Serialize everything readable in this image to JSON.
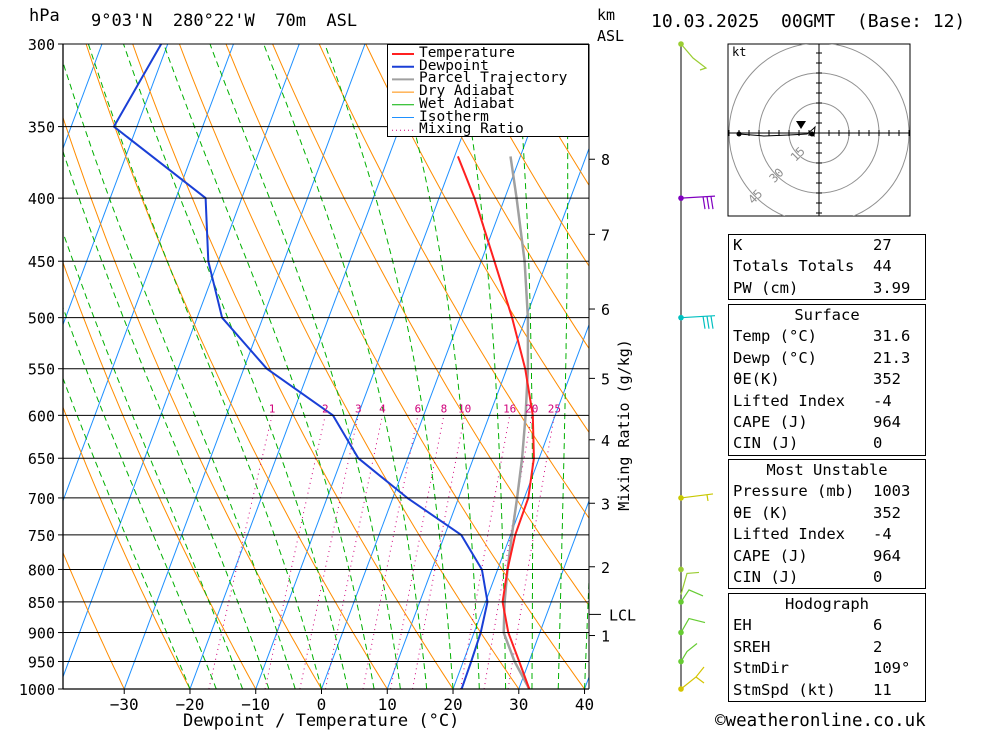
{
  "header": {
    "pressure_unit": "hPa",
    "location": "9°03'N  280°22'W  70m  ASL",
    "height_unit_top": "km",
    "height_unit_bottom": "ASL",
    "datetime": "10.03.2025  00GMT  (Base: 12)"
  },
  "footer": {
    "credit": "©weatheronline.co.uk"
  },
  "chart_data": {
    "type": "line",
    "title": "9°03'N 280°22'W 70m ASL",
    "xlabel": "Dewpoint / Temperature (°C)",
    "ylabel": "hPa",
    "secondary_ylabel": "Mixing Ratio (g/kg)",
    "x_ticks": [
      -30,
      -20,
      -10,
      0,
      10,
      20,
      30,
      40
    ],
    "pressure_levels": [
      300,
      350,
      400,
      450,
      500,
      550,
      600,
      650,
      700,
      750,
      800,
      850,
      900,
      950,
      1000
    ],
    "km_ticks": [
      {
        "label": "1",
        "p": 905
      },
      {
        "label": "2",
        "p": 796
      },
      {
        "label": "3",
        "p": 707
      },
      {
        "label": "4",
        "p": 628
      },
      {
        "label": "5",
        "p": 560
      },
      {
        "label": "6",
        "p": 492
      },
      {
        "label": "7",
        "p": 428
      },
      {
        "label": "8",
        "p": 372
      }
    ],
    "lcl": {
      "label": "LCL",
      "p": 870
    },
    "mixing_ratio_labels": [
      "1",
      "2",
      "3",
      "4",
      "6",
      "8",
      "10",
      "16",
      "20",
      "25"
    ],
    "legend": [
      "Temperature",
      "Dewpoint",
      "Parcel Trajectory",
      "Dry Adiabat",
      "Wet Adiabat",
      "Isotherm",
      "Mixing Ratio"
    ],
    "colors": {
      "temperature": "#ff2020",
      "dewpoint": "#1a3fd6",
      "parcel": "#a0a0a0",
      "dry_adiabat": "#ff8c00",
      "wet_adiabat": "#00b000",
      "isotherm": "#1e90ff",
      "mixing_ratio": "#d0007a"
    },
    "series": [
      {
        "name": "Temperature",
        "points": [
          [
            1000,
            31.6
          ],
          [
            950,
            28.5
          ],
          [
            900,
            25.2
          ],
          [
            850,
            22.6
          ],
          [
            800,
            21.5
          ],
          [
            750,
            20.7
          ],
          [
            700,
            20.6
          ],
          [
            650,
            19.2
          ],
          [
            600,
            16.6
          ],
          [
            550,
            12.8
          ],
          [
            500,
            7.9
          ],
          [
            450,
            2.0
          ],
          [
            400,
            -4.6
          ],
          [
            370,
            -9.5
          ]
        ]
      },
      {
        "name": "Dewpoint",
        "points": [
          [
            1000,
            21.3
          ],
          [
            950,
            21.2
          ],
          [
            900,
            21.0
          ],
          [
            850,
            20.3
          ],
          [
            800,
            17.6
          ],
          [
            750,
            12.5
          ],
          [
            700,
            2.2
          ],
          [
            650,
            -7.5
          ],
          [
            600,
            -13.8
          ],
          [
            550,
            -26.5
          ],
          [
            500,
            -36.2
          ],
          [
            450,
            -41.5
          ],
          [
            400,
            -45.5
          ],
          [
            350,
            -63.5
          ],
          [
            300,
            -61.0
          ]
        ]
      },
      {
        "name": "Parcel Trajectory",
        "points": [
          [
            1000,
            31.6
          ],
          [
            950,
            27.8
          ],
          [
            900,
            24.5
          ],
          [
            850,
            22.9
          ],
          [
            800,
            21.5
          ],
          [
            750,
            20.2
          ],
          [
            700,
            18.9
          ],
          [
            650,
            17.4
          ],
          [
            600,
            15.5
          ],
          [
            550,
            13.2
          ],
          [
            500,
            10.3
          ],
          [
            450,
            6.6
          ],
          [
            400,
            1.8
          ],
          [
            370,
            -1.5
          ]
        ]
      }
    ],
    "wind_barbs_pressure": [
      300,
      400,
      500,
      700,
      800,
      850,
      900,
      950,
      1000
    ]
  },
  "hodograph": {
    "unit": "kt",
    "rings": [
      "15",
      "30",
      "45"
    ]
  },
  "indices": {
    "rows": [
      {
        "label": "K",
        "value": "27"
      },
      {
        "label": "Totals Totals",
        "value": "44"
      },
      {
        "label": "PW (cm)",
        "value": "3.99"
      }
    ]
  },
  "surface": {
    "title": "Surface",
    "rows": [
      {
        "label": "Temp (°C)",
        "value": "31.6"
      },
      {
        "label": "Dewp (°C)",
        "value": "21.3"
      },
      {
        "label": "θE(K)",
        "value": "352"
      },
      {
        "label": "Lifted Index",
        "value": "-4"
      },
      {
        "label": "CAPE (J)",
        "value": "964"
      },
      {
        "label": "CIN (J)",
        "value": "0"
      }
    ]
  },
  "most_unstable": {
    "title": "Most Unstable",
    "rows": [
      {
        "label": "Pressure (mb)",
        "value": "1003"
      },
      {
        "label": "θE (K)",
        "value": "352"
      },
      {
        "label": "Lifted Index",
        "value": "-4"
      },
      {
        "label": "CAPE (J)",
        "value": "964"
      },
      {
        "label": "CIN (J)",
        "value": "0"
      }
    ]
  },
  "hodograph_stats": {
    "title": "Hodograph",
    "rows": [
      {
        "label": "EH",
        "value": "6"
      },
      {
        "label": "SREH",
        "value": "2"
      },
      {
        "label": "StmDir",
        "value": "109°"
      },
      {
        "label": "StmSpd (kt)",
        "value": "11"
      }
    ]
  }
}
